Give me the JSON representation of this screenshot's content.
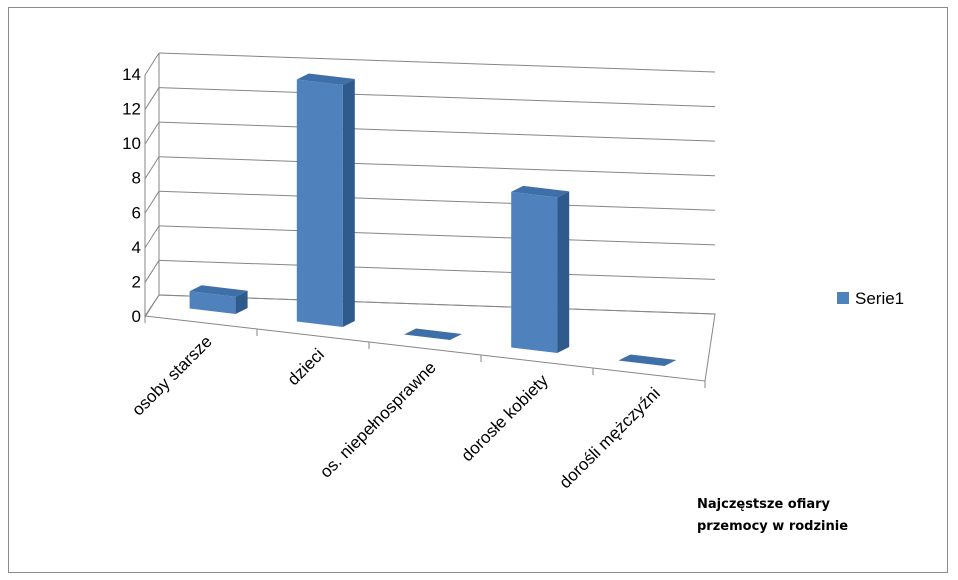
{
  "chart_data": {
    "type": "bar",
    "style": "3d-column",
    "categories": [
      "osoby starsze",
      "dzieci",
      "os. niepełnosprawne",
      "dorosłe kobiety",
      "dorośli mężczyźni"
    ],
    "series": [
      {
        "name": "Serie1",
        "values": [
          1,
          14,
          0,
          9,
          0
        ]
      }
    ],
    "y_ticks": [
      "0",
      "2",
      "4",
      "6",
      "8",
      "10",
      "12",
      "14"
    ],
    "ylim": [
      0,
      14
    ],
    "grid": true,
    "legend": "right",
    "colors": {
      "front": "#4f81bd",
      "side": "#2f5a8c",
      "top": "#3f6fa8",
      "grid": "#868686"
    }
  },
  "note": {
    "line1": "Najczęstsze ofiary",
    "line2": "przemocy w rodzinie"
  }
}
